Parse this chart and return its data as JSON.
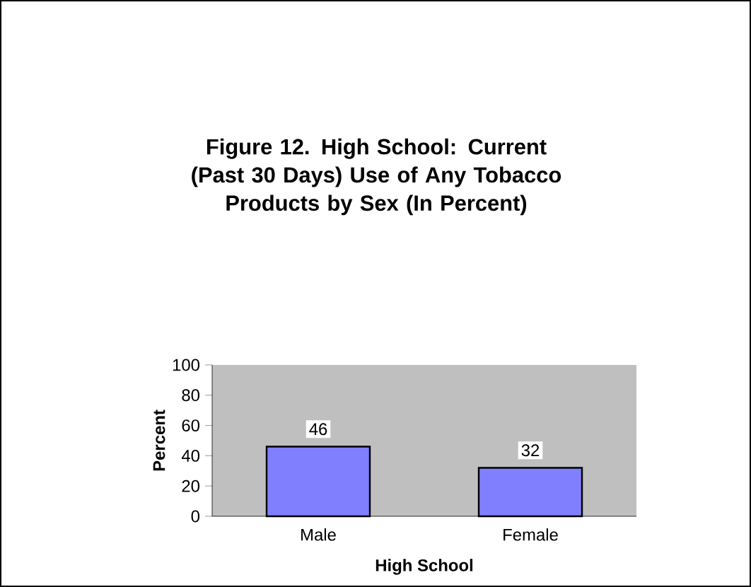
{
  "chart_data": {
    "type": "bar",
    "title": "Figure 12.  High School:  Current (Past 30 Days) Use of Any Tobacco Products by Sex (In Percent)",
    "xlabel": "High School",
    "ylabel": "Percent",
    "categories": [
      "Male",
      "Female"
    ],
    "values": [
      46,
      32
    ],
    "color": "#8080ff",
    "ylim": [
      0,
      100
    ],
    "yticks": [
      0,
      20,
      40,
      60,
      80,
      100
    ],
    "data_labels": true
  }
}
